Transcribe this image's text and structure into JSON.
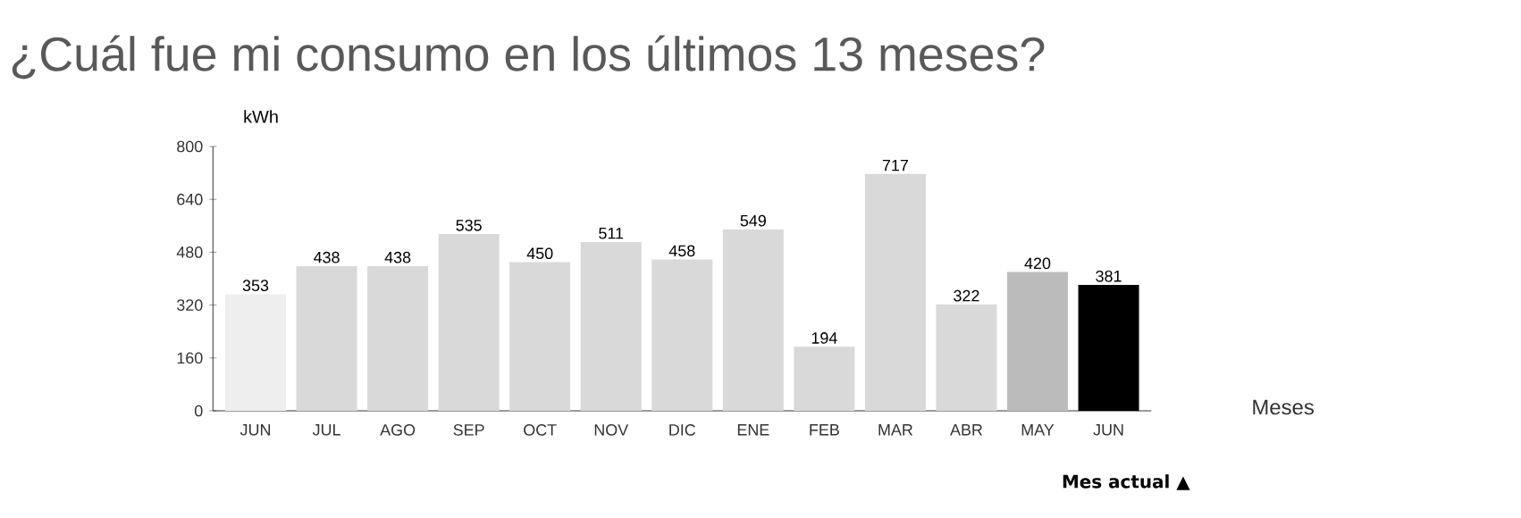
{
  "chart_data": {
    "type": "bar",
    "title": "¿Cuál fue mi consumo en los últimos 13 meses?",
    "ylabel": "kWh",
    "xlabel": "Meses",
    "categories": [
      "JUN",
      "JUL",
      "AGO",
      "SEP",
      "OCT",
      "NOV",
      "DIC",
      "ENE",
      "FEB",
      "MAR",
      "ABR",
      "MAY",
      "JUN"
    ],
    "values": [
      353,
      438,
      438,
      535,
      450,
      511,
      458,
      549,
      194,
      717,
      322,
      420,
      381
    ],
    "colors": [
      "#eeeeee",
      "#d9d9d9",
      "#d9d9d9",
      "#d9d9d9",
      "#d9d9d9",
      "#d9d9d9",
      "#d9d9d9",
      "#d9d9d9",
      "#d9d9d9",
      "#d9d9d9",
      "#d9d9d9",
      "#bbbbbb",
      "#000000"
    ],
    "ylim": [
      0,
      800
    ],
    "yticks": [
      0,
      160,
      320,
      480,
      640,
      800
    ],
    "data_labels": true,
    "annotations": [
      "Mes actual ▲"
    ]
  }
}
